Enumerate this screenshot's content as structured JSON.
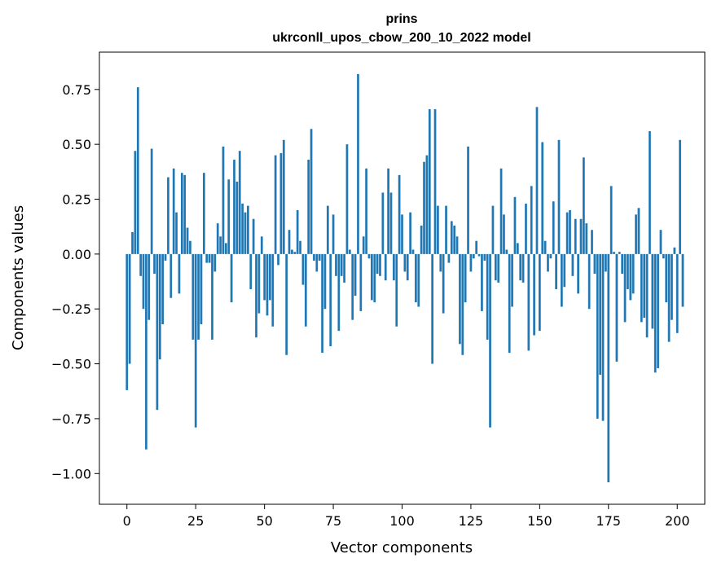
{
  "chart_data": {
    "type": "bar",
    "title": "prins",
    "subtitle": "ukrconll_upos_cbow_200_10_2022 model",
    "xlabel": "Vector components",
    "ylabel": "Components values",
    "xlim": [
      -10,
      210
    ],
    "ylim": [
      -1.14,
      0.92
    ],
    "xticks": [
      0,
      25,
      50,
      75,
      100,
      125,
      150,
      175,
      200
    ],
    "xtick_labels": [
      "0",
      "25",
      "50",
      "75",
      "100",
      "125",
      "150",
      "175",
      "200"
    ],
    "yticks": [
      0.75,
      0.5,
      0.25,
      0.0,
      -0.25,
      -0.5,
      -0.75,
      -1.0
    ],
    "ytick_labels": [
      "0.75",
      "0.50",
      "0.25",
      "0.00",
      "−0.25",
      "−0.50",
      "−0.75",
      "−1.00"
    ],
    "bar_color": "#1f77b4",
    "grid": false,
    "values": [
      -0.62,
      -0.5,
      0.1,
      0.47,
      0.76,
      -0.1,
      -0.25,
      -0.89,
      -0.3,
      0.48,
      -0.09,
      -0.71,
      -0.48,
      -0.32,
      -0.03,
      0.35,
      -0.2,
      0.39,
      0.19,
      -0.18,
      0.37,
      0.36,
      0.12,
      0.06,
      -0.39,
      -0.79,
      -0.39,
      -0.32,
      0.37,
      -0.04,
      -0.04,
      -0.39,
      -0.08,
      0.14,
      0.08,
      0.49,
      0.05,
      0.34,
      -0.22,
      0.43,
      0.33,
      0.47,
      0.23,
      0.19,
      0.22,
      -0.16,
      0.16,
      -0.38,
      -0.27,
      0.08,
      -0.21,
      -0.28,
      -0.21,
      -0.33,
      0.45,
      -0.05,
      0.46,
      0.52,
      -0.46,
      0.11,
      0.02,
      0.01,
      0.2,
      0.06,
      -0.14,
      -0.33,
      0.43,
      0.57,
      -0.03,
      -0.08,
      -0.03,
      -0.45,
      -0.25,
      0.22,
      -0.42,
      0.18,
      -0.1,
      -0.35,
      -0.1,
      -0.13,
      0.5,
      0.02,
      -0.3,
      -0.19,
      0.82,
      -0.26,
      0.08,
      0.39,
      -0.02,
      -0.21,
      -0.22,
      -0.09,
      -0.1,
      0.28,
      -0.12,
      0.39,
      0.28,
      -0.12,
      -0.33,
      0.36,
      0.18,
      -0.08,
      -0.12,
      0.19,
      0.02,
      -0.22,
      -0.24,
      0.13,
      0.42,
      0.45,
      0.66,
      -0.5,
      0.66,
      0.22,
      -0.08,
      -0.27,
      0.22,
      -0.04,
      0.15,
      0.13,
      0.08,
      -0.41,
      -0.46,
      -0.22,
      0.49,
      -0.08,
      -0.02,
      0.06,
      -0.01,
      -0.26,
      -0.03,
      -0.39,
      -0.79,
      0.22,
      -0.12,
      -0.13,
      0.39,
      0.18,
      0.02,
      -0.45,
      -0.24,
      0.26,
      0.05,
      -0.12,
      -0.13,
      0.23,
      -0.44,
      0.31,
      -0.37,
      0.67,
      -0.35,
      0.51,
      0.06,
      -0.08,
      -0.02,
      0.24,
      -0.16,
      0.52,
      -0.24,
      -0.15,
      0.19,
      0.2,
      -0.1,
      0.16,
      -0.18,
      0.16,
      0.44,
      0.14,
      -0.25,
      0.11,
      -0.09,
      -0.75,
      -0.55,
      -0.76,
      -0.08,
      -1.04,
      0.31,
      0.01,
      -0.49,
      0.01,
      -0.09,
      -0.31,
      -0.16,
      -0.21,
      -0.18,
      0.18,
      0.21,
      -0.31,
      -0.29,
      -0.38,
      0.56,
      -0.34,
      -0.54,
      -0.52,
      0.11,
      -0.02,
      -0.22,
      -0.4,
      -0.3,
      0.03,
      -0.36,
      0.52,
      -0.24
    ]
  }
}
